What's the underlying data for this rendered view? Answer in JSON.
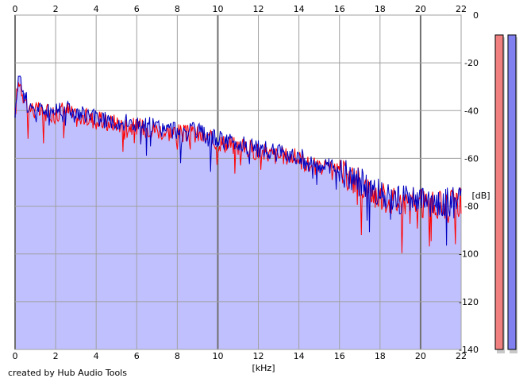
{
  "chart_data": {
    "type": "area",
    "x_unit": "[kHz]",
    "y_unit": "[dB]",
    "x_ticks": [
      "0",
      "2",
      "4",
      "6",
      "8",
      "10",
      "12",
      "14",
      "16",
      "18",
      "20",
      "22"
    ],
    "y_ticks": [
      "0",
      "-20",
      "-40",
      "-60",
      "-80",
      "-100",
      "-120",
      "-140"
    ],
    "xlim": [
      0,
      22
    ],
    "ylim": [
      -140,
      0
    ],
    "grid": true,
    "fill_color": "#c0c0ff",
    "series": [
      {
        "color": "#ff0000",
        "x": [
          0,
          0.1,
          0.2,
          0.4,
          0.6,
          1,
          1.5,
          2,
          2.5,
          3,
          3.5,
          4,
          4.5,
          5,
          5.5,
          6,
          6.5,
          7,
          7.5,
          8,
          8.5,
          9,
          9.5,
          10,
          10.5,
          11,
          11.5,
          12,
          12.5,
          13,
          13.5,
          14,
          14.5,
          15,
          15.5,
          16,
          16.5,
          17,
          17.5,
          18,
          18.5,
          19,
          19.5,
          20,
          20.5,
          21,
          21.5,
          22
        ],
        "y": [
          -42,
          -32,
          -27,
          -33,
          -38,
          -40,
          -41,
          -41,
          -39,
          -43,
          -43,
          -44,
          -45,
          -45,
          -46,
          -47,
          -47,
          -48,
          -49,
          -49,
          -50,
          -50,
          -52,
          -53,
          -54,
          -55,
          -56,
          -57,
          -58,
          -59,
          -59,
          -60,
          -63,
          -64,
          -65,
          -66,
          -68,
          -70,
          -74,
          -76,
          -77,
          -78,
          -78,
          -79,
          -80,
          -80,
          -79,
          -78
        ]
      },
      {
        "color": "#0000c0",
        "x": [
          0,
          0.1,
          0.2,
          0.4,
          0.6,
          1,
          1.5,
          2,
          2.5,
          3,
          3.5,
          4,
          4.5,
          5,
          5.5,
          6,
          6.5,
          7,
          7.5,
          8,
          8.5,
          9,
          9.5,
          10,
          10.5,
          11,
          11.5,
          12,
          12.5,
          13,
          13.5,
          14,
          14.5,
          15,
          15.5,
          16,
          16.5,
          17,
          17.5,
          18,
          18.5,
          19,
          19.5,
          20,
          20.5,
          21,
          21.5,
          22
        ],
        "y": [
          -40,
          -30,
          -25,
          -32,
          -37,
          -39,
          -40,
          -40,
          -38,
          -42,
          -42,
          -43,
          -44,
          -44,
          -45,
          -46,
          -46,
          -47,
          -48,
          -48,
          -49,
          -49,
          -51,
          -52,
          -53,
          -54,
          -55,
          -56,
          -57,
          -58,
          -58,
          -59,
          -62,
          -63,
          -64,
          -65,
          -67,
          -70,
          -73,
          -75,
          -76,
          -77,
          -78,
          -78,
          -79,
          -79,
          -78,
          -76
        ]
      }
    ]
  },
  "meters": [
    {
      "color": "#f08080"
    },
    {
      "color": "#8080f0"
    }
  ],
  "footer": {
    "credit": "created by Hub Audio Tools"
  }
}
